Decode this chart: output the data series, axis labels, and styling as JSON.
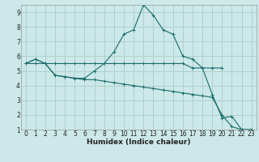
{
  "xlabel": "Humidex (Indice chaleur)",
  "xlim": [
    -0.5,
    23.5
  ],
  "ylim": [
    1,
    9.5
  ],
  "xticks": [
    0,
    1,
    2,
    3,
    4,
    5,
    6,
    7,
    8,
    9,
    10,
    11,
    12,
    13,
    14,
    15,
    16,
    17,
    18,
    19,
    20,
    21,
    22,
    23
  ],
  "yticks": [
    1,
    2,
    3,
    4,
    5,
    6,
    7,
    8,
    9
  ],
  "bg_color": "#cce8e8",
  "grid_color": "#aacccc",
  "line_color": "#1a6b6b",
  "curve1_x": [
    0,
    1,
    2,
    3,
    4,
    5,
    6,
    7,
    8,
    9,
    10,
    11,
    12,
    13,
    14,
    15,
    16,
    17,
    18,
    19,
    20
  ],
  "curve1_y": [
    5.5,
    5.8,
    5.5,
    5.5,
    5.5,
    5.5,
    5.5,
    5.5,
    5.5,
    5.5,
    5.5,
    5.5,
    5.5,
    5.5,
    5.5,
    5.5,
    5.5,
    5.2,
    5.2,
    5.2,
    5.2
  ],
  "curve2_x": [
    0,
    1,
    2,
    3,
    4,
    5,
    6,
    7,
    8,
    9,
    10,
    11,
    12,
    13,
    14,
    15,
    16,
    17,
    18,
    19,
    20,
    21,
    22,
    23
  ],
  "curve2_y": [
    5.5,
    5.8,
    5.5,
    4.7,
    4.6,
    4.5,
    4.5,
    5.0,
    5.5,
    6.3,
    7.5,
    7.8,
    9.5,
    8.8,
    7.8,
    7.5,
    6.0,
    5.8,
    5.2,
    3.4,
    1.8,
    1.9,
    1.0,
    1.0
  ],
  "curve3_x": [
    0,
    1,
    2,
    3,
    4,
    5,
    6,
    7,
    8,
    9,
    10,
    11,
    12,
    13,
    14,
    15,
    16,
    17,
    18,
    19,
    20,
    21,
    22,
    23
  ],
  "curve3_y": [
    5.5,
    5.5,
    5.5,
    4.7,
    4.6,
    4.5,
    4.4,
    4.4,
    4.3,
    4.2,
    4.1,
    4.0,
    3.9,
    3.8,
    3.7,
    3.6,
    3.5,
    3.4,
    3.3,
    3.2,
    2.0,
    1.2,
    1.0,
    1.0
  ]
}
